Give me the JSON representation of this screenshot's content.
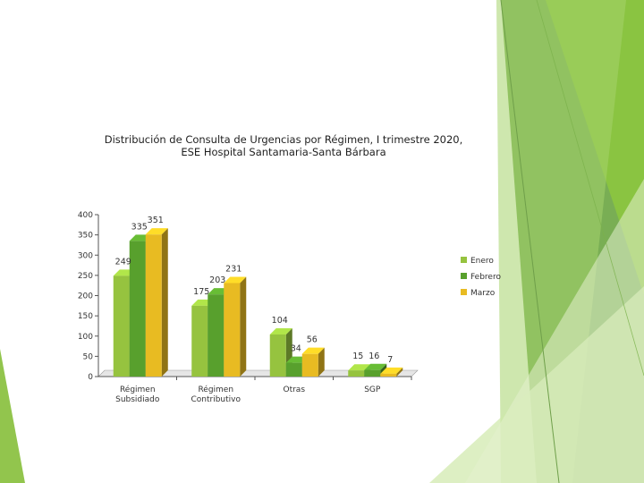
{
  "colors": {
    "accent_dark": "#4c9a2a",
    "accent_mid": "#76b531",
    "accent_light": "#a7d170",
    "accent_pale": "#d6ebba"
  },
  "chart_data": {
    "type": "bar",
    "title_lines": [
      "Distribución de Consulta  de Urgencias por Régimen, I trimestre 2020,",
      "ESE Hospital Santamaria-Santa Bárbara"
    ],
    "categories": [
      [
        "Régimen",
        "Subsidiado"
      ],
      [
        "Régimen",
        "Contributivo"
      ],
      [
        "Otras"
      ],
      [
        "SGP"
      ]
    ],
    "series": [
      {
        "name": "Enero",
        "color": "#96c33f",
        "values": [
          249,
          175,
          104,
          15
        ]
      },
      {
        "name": "Febrero",
        "color": "#58a02d",
        "values": [
          335,
          203,
          34,
          16
        ]
      },
      {
        "name": "Marzo",
        "color": "#e8bb22",
        "values": [
          351,
          231,
          56,
          7
        ]
      }
    ],
    "yticks": [
      0,
      50,
      100,
      150,
      200,
      250,
      300,
      350,
      400
    ],
    "ylim": [
      0,
      400
    ],
    "legend_position": "right",
    "grid": false,
    "bar_style": "3d"
  }
}
